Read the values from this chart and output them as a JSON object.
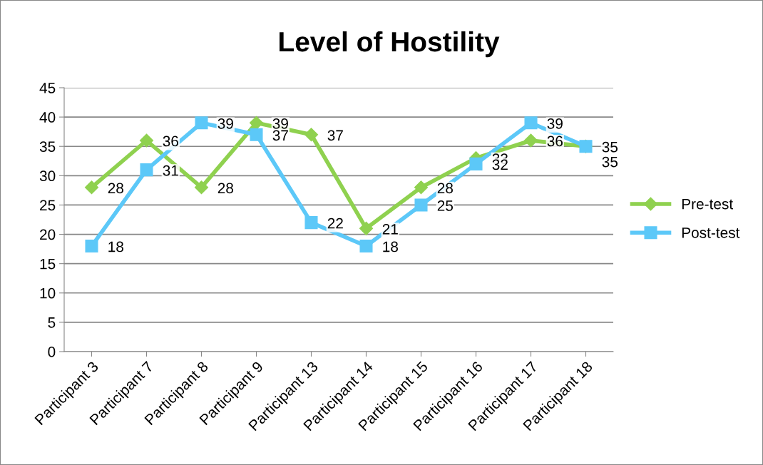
{
  "chart_data": {
    "type": "line",
    "title": "Level of Hostility",
    "categories": [
      "Participant 3",
      "Participant 7",
      "Participant 8",
      "Participant 9",
      "Participant 13",
      "Participant 14",
      "Participant 15",
      "Participant 16",
      "Participant 17",
      "Participant 18"
    ],
    "series": [
      {
        "name": "Pre-test",
        "color": "#8fd14f",
        "marker": "diamond",
        "values": [
          28,
          36,
          28,
          39,
          37,
          21,
          28,
          33,
          36,
          35
        ]
      },
      {
        "name": "Post-test",
        "color": "#5cc8f8",
        "marker": "square",
        "values": [
          18,
          31,
          39,
          37,
          22,
          18,
          25,
          32,
          39,
          35
        ]
      }
    ],
    "ylim": [
      0,
      45
    ],
    "yticks": [
      0,
      5,
      10,
      15,
      20,
      25,
      30,
      35,
      40,
      45
    ],
    "grid": "y",
    "legend": "right",
    "data_labels": true
  }
}
